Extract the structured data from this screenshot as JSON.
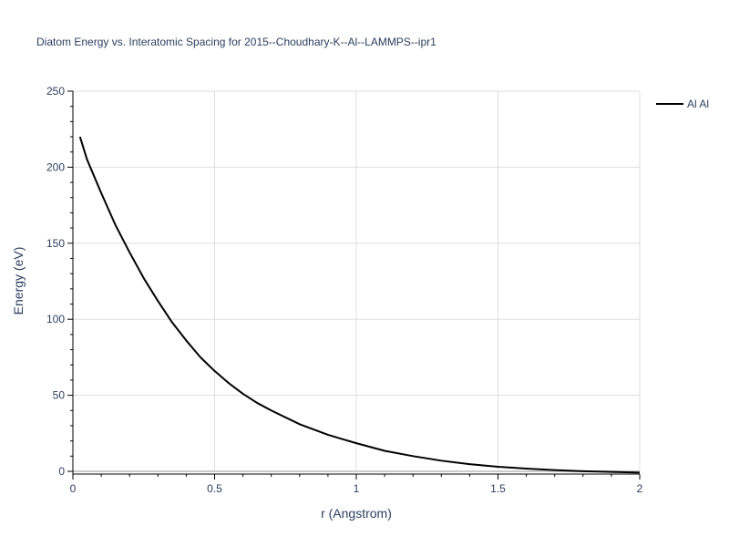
{
  "chart_data": {
    "type": "line",
    "title": "Diatom Energy vs. Interatomic Spacing for 2015--Choudhary-K--Al--LAMMPS--ipr1",
    "xlabel": "r (Angstrom)",
    "ylabel": "Energy (eV)",
    "xlim": [
      0,
      2
    ],
    "ylim": [
      0,
      250
    ],
    "xticks": [
      0,
      0.5,
      1,
      1.5,
      2
    ],
    "xtick_labels": [
      "0",
      "0.5",
      "1",
      "1.5",
      "2"
    ],
    "yticks": [
      0,
      50,
      100,
      150,
      200,
      250
    ],
    "ytick_labels": [
      "0",
      "50",
      "100",
      "150",
      "200",
      "250"
    ],
    "grid": true,
    "legend_position": "top-right",
    "series": [
      {
        "name": "Al Al",
        "color": "#000000",
        "x": [
          0.025,
          0.05,
          0.1,
          0.15,
          0.2,
          0.25,
          0.3,
          0.35,
          0.4,
          0.45,
          0.5,
          0.55,
          0.6,
          0.65,
          0.7,
          0.8,
          0.9,
          1.0,
          1.1,
          1.2,
          1.3,
          1.4,
          1.5,
          1.6,
          1.7,
          1.8,
          1.9,
          2.0
        ],
        "y": [
          220,
          205,
          183,
          162,
          144,
          127,
          112,
          98,
          86,
          75,
          66,
          58,
          51,
          45,
          40,
          31,
          24,
          18.5,
          13.5,
          10,
          7,
          4.7,
          3.0,
          1.8,
          0.8,
          0.1,
          -0.4,
          -0.8
        ]
      }
    ]
  }
}
